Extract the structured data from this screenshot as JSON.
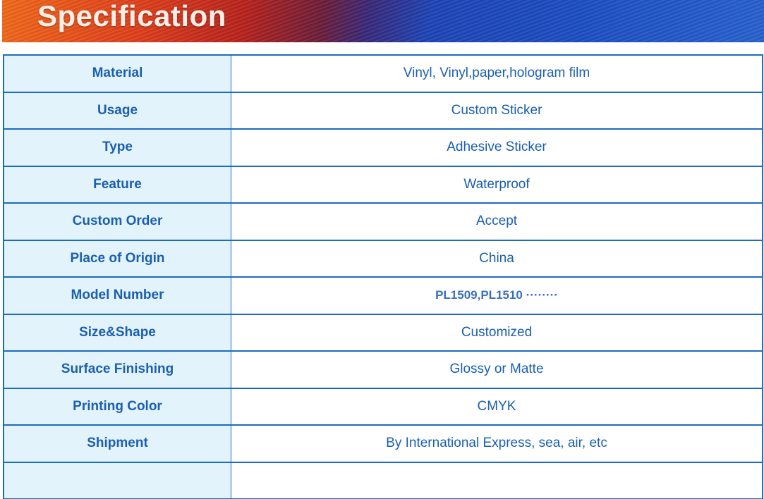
{
  "banner": {
    "title": "Specification"
  },
  "colors": {
    "text": "#1a5fb0",
    "border": "#1a6cbf",
    "label_bg": "#e3f3fc"
  },
  "rows": [
    {
      "label": "Material",
      "value": "Vinyl, Vinyl,paper,hologram film"
    },
    {
      "label": "Usage",
      "value": "Custom Sticker"
    },
    {
      "label": "Type",
      "value": "Adhesive Sticker"
    },
    {
      "label": "Feature",
      "value": "Waterproof"
    },
    {
      "label": "Custom Order",
      "value": "Accept"
    },
    {
      "label": "Place of Origin",
      "value": "China"
    },
    {
      "label": "Model Number",
      "value": "PL1509,PL1510 ········"
    },
    {
      "label": "Size&Shape",
      "value": "Customized"
    },
    {
      "label": "Surface Finishing",
      "value": "Glossy or Matte"
    },
    {
      "label": "Printing Color",
      "value": "CMYK"
    },
    {
      "label": "Shipment",
      "value": "By International Express, sea, air, etc"
    }
  ]
}
